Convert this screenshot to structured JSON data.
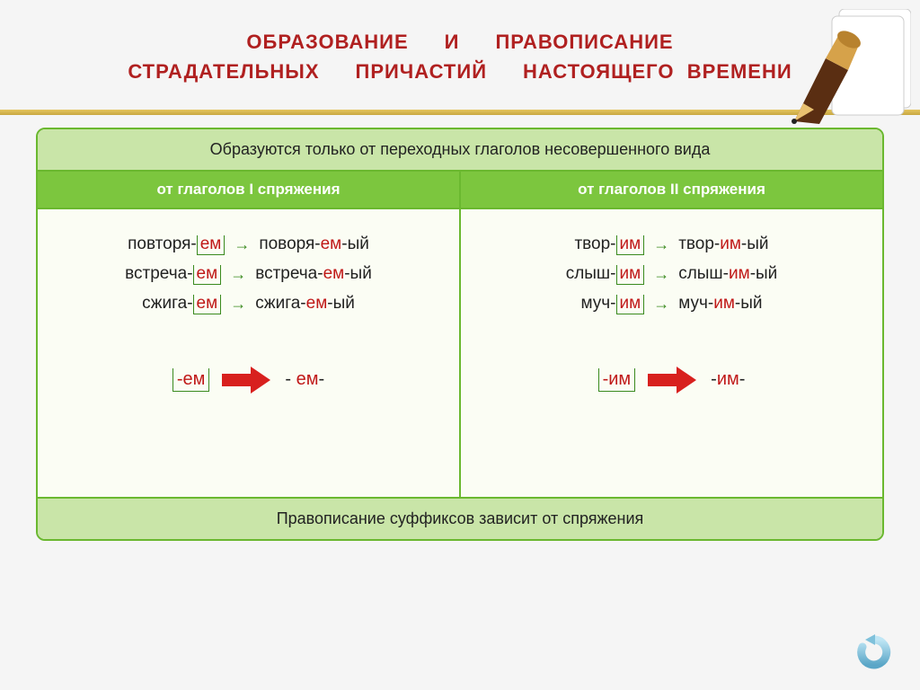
{
  "colors": {
    "title": "#b02020",
    "panel_border": "#6ab82f",
    "panel_bg": "#fbfdf4",
    "band_light": "#c9e5a8",
    "band_dark": "#7cc63e",
    "suffix": "#c01818",
    "box_border": "#3a8a1e",
    "arrow_red": "#d8201e",
    "gold1": "#e5c560",
    "gold2": "#c8a840"
  },
  "title": {
    "line1a": "ОБРАЗОВАНИЕ",
    "line1b": "И",
    "line1c": "ПРАВОПИСАНИЕ",
    "line2a": "СТРАДАТЕЛЬНЫХ",
    "line2b": "ПРИЧАСТИЙ",
    "line2c": "НАСТОЯЩЕГО",
    "line2d": "ВРЕМЕНИ"
  },
  "top_note": "Образуются только от переходных глаголов несовершенного вида",
  "headers": {
    "left": "от глаголов  I  спряжения",
    "right": "от глаголов  II  спряжения"
  },
  "left_rows": [
    {
      "stem1": "повторя-",
      "suf1": "ем",
      "stem2": "поворя-",
      "suf2": "ем",
      "end": "-ый"
    },
    {
      "stem1": "встреча-",
      "suf1": "ем",
      "stem2": "встреча-",
      "suf2": "ем",
      "end": "-ый"
    },
    {
      "stem1": "сжига-",
      "suf1": "ем",
      "stem2": "сжига-",
      "suf2": "ем",
      "end": "-ый"
    }
  ],
  "right_rows": [
    {
      "stem1": "твор-",
      "suf1": "им",
      "stem2": "твор-",
      "suf2": "им",
      "end": "-ый"
    },
    {
      "stem1": "слыш-",
      "suf1": "им",
      "stem2": "слыш-",
      "suf2": "им",
      "end": "-ый"
    },
    {
      "stem1": "муч-",
      "suf1": "им",
      "stem2": "муч-",
      "suf2": "им",
      "end": "-ый"
    }
  ],
  "summary": {
    "left_lead": "-ем",
    "left_result_pre": "- ",
    "left_result_suf": "ем",
    "left_result_post": "-",
    "right_lead": "-им",
    "right_result_pre": "-",
    "right_result_suf": "им",
    "right_result_post": "-"
  },
  "footer": "Правописание суффиксов зависит от спряжения",
  "icons": {
    "pen": "pen-icon",
    "back": "back-arrow-icon"
  }
}
